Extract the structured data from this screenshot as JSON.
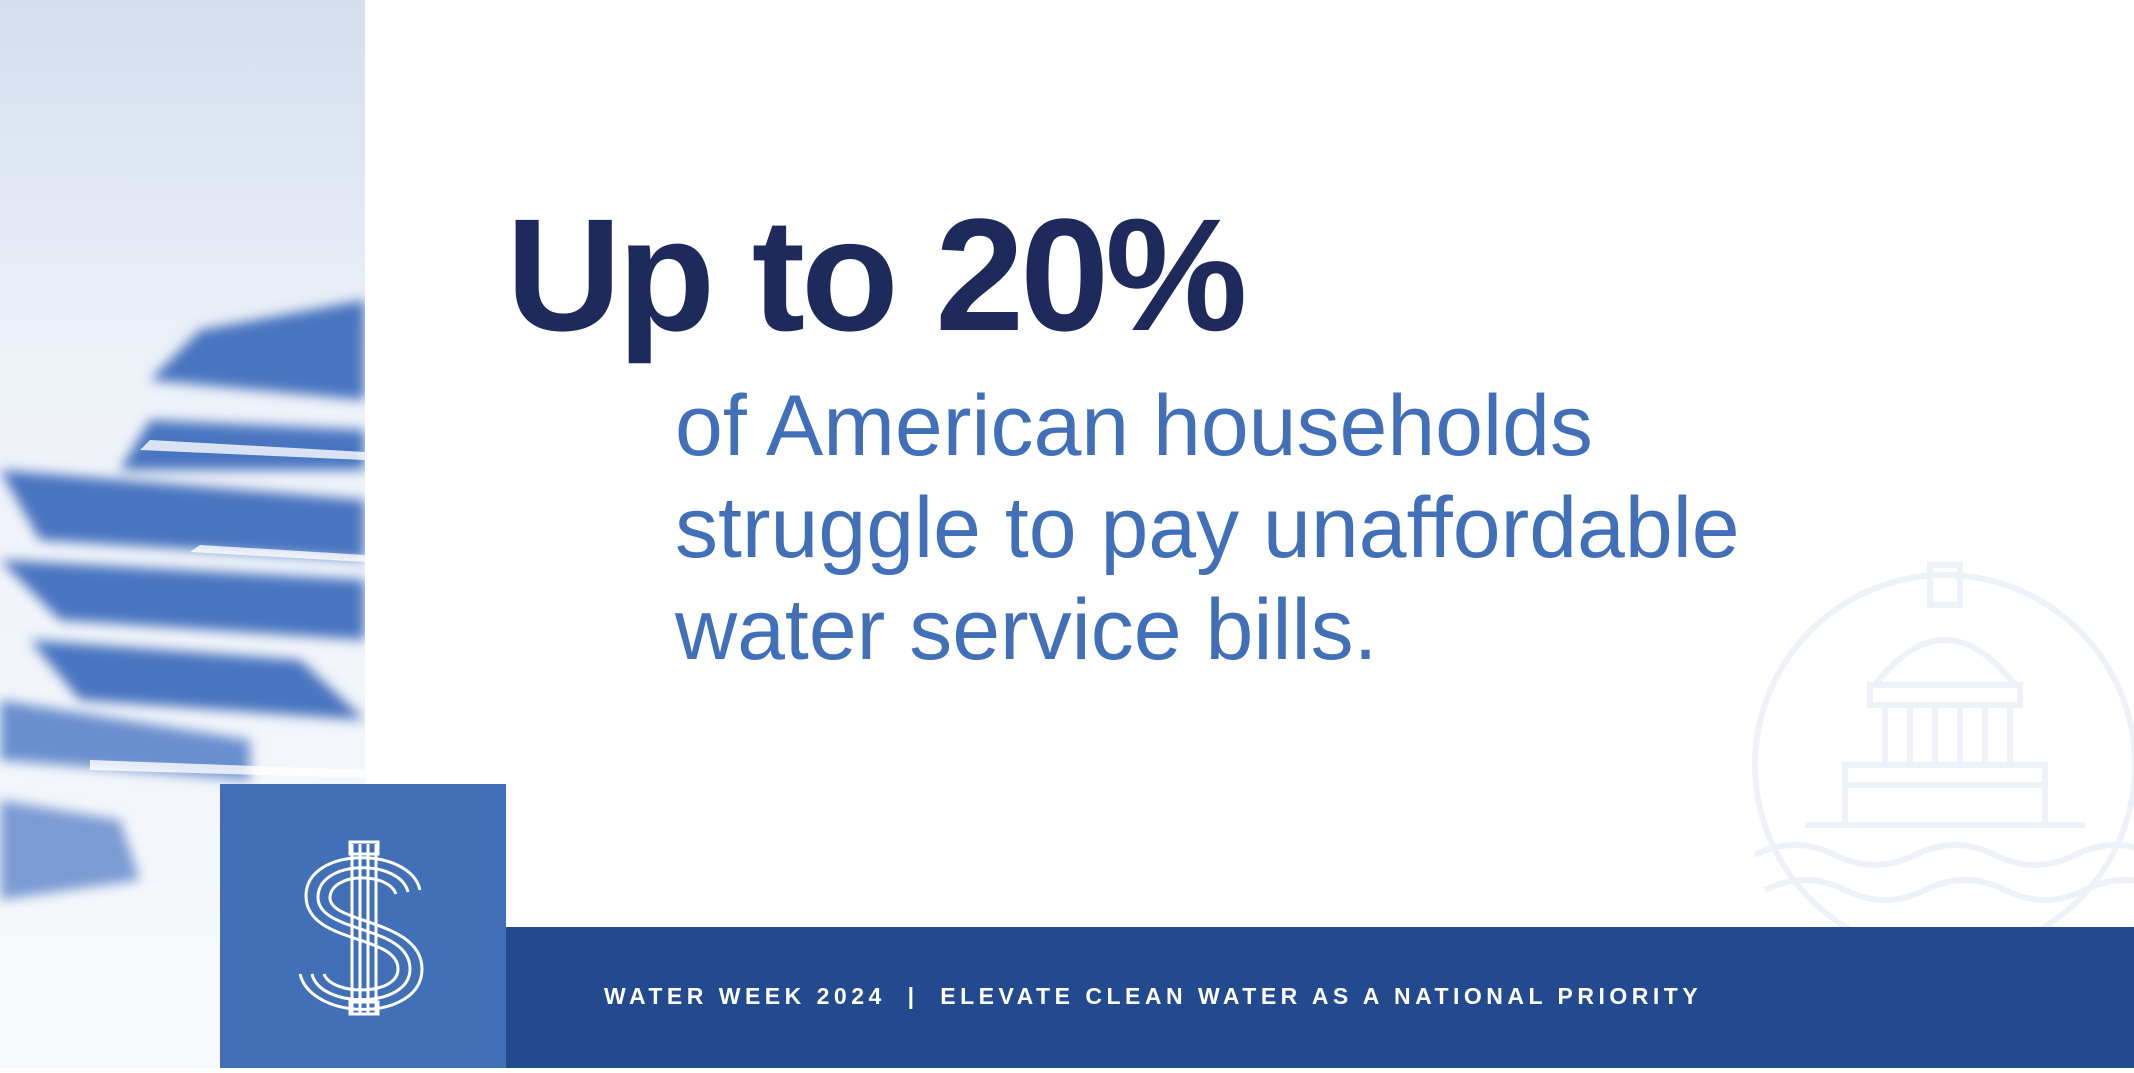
{
  "headline": "Up to 20%",
  "body": [
    "of American households",
    "struggle to pay unaffordable",
    "water service bills."
  ],
  "footer": "WATER WEEK 2024  |  ELEVATE CLEAN WATER AS A NATIONAL PRIORITY"
}
